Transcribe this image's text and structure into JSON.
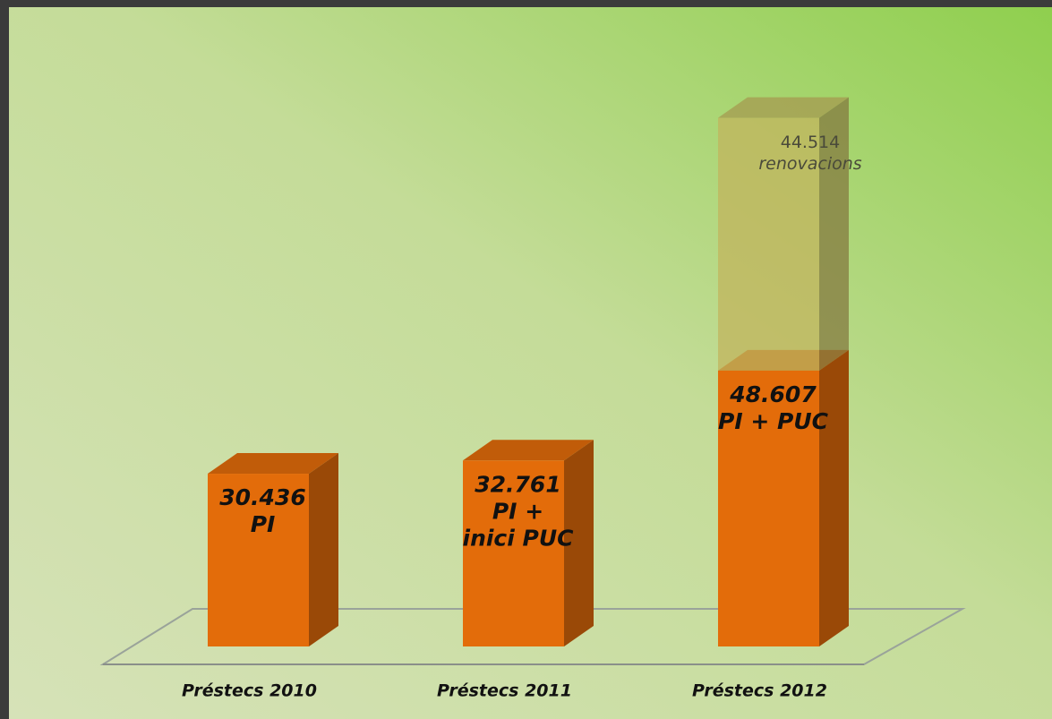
{
  "chart_data": {
    "type": "bar3d_stacked",
    "categories": [
      "Préstecs 2010",
      "Préstecs 2011",
      "Préstecs 2012"
    ],
    "series": [
      {
        "color": "#e36c0a",
        "values": [
          30436,
          32761,
          48607
        ],
        "value_labels": [
          "30.436",
          "32.761",
          "48.607"
        ],
        "descriptions": [
          [
            "PI"
          ],
          [
            "PI +",
            "inici PUC"
          ],
          [
            "PI + PUC"
          ]
        ]
      },
      {
        "color": "#c2b45e",
        "values": [
          null,
          null,
          44514
        ],
        "value_labels": [
          null,
          null,
          "44.514"
        ],
        "descriptions": [
          null,
          null,
          [
            "renovacions"
          ]
        ]
      }
    ]
  }
}
